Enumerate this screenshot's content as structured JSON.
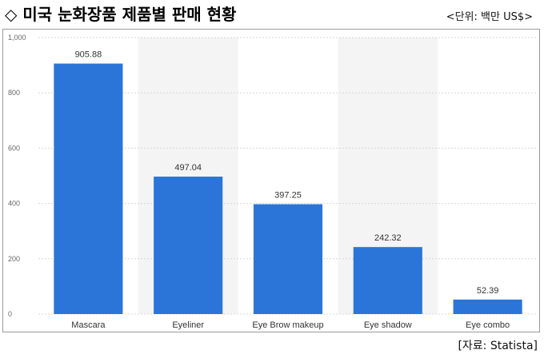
{
  "header": {
    "title": "◇ 미국 눈화장품 제품별 판매 현황",
    "unit": "<단위: 백만 US$>"
  },
  "footer": {
    "source": "[자료: Statista]"
  },
  "colors": {
    "bar": "#2b75d9",
    "band": "#f4f4f4",
    "grid": "#d8d8d8",
    "axis_text": "#666666"
  },
  "chart_data": {
    "type": "bar",
    "categories": [
      "Mascara",
      "Eyeliner",
      "Eye Brow makeup",
      "Eye shadow",
      "Eye combo"
    ],
    "values": [
      905.88,
      497.04,
      397.25,
      242.32,
      52.39
    ],
    "data_labels": [
      "905.88",
      "497.04",
      "397.25",
      "242.32",
      "52.39"
    ],
    "y_ticks": [
      "0",
      "200",
      "400",
      "600",
      "800",
      "1,000"
    ],
    "y_tick_values": [
      0,
      200,
      400,
      600,
      800,
      1000
    ],
    "ylim": [
      0,
      1000
    ],
    "grid": true,
    "legend": false
  }
}
